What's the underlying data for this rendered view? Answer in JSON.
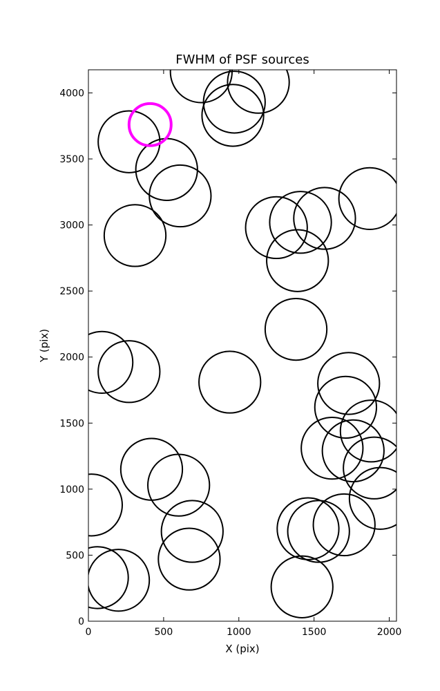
{
  "chart_data": {
    "type": "scatter",
    "title": "FWHM of PSF sources",
    "xlabel": "X (pix)",
    "ylabel": "Y (pix)",
    "xlim": [
      0,
      2048
    ],
    "ylim": [
      0,
      4175
    ],
    "xticks": [
      0,
      500,
      1000,
      1500,
      2000
    ],
    "yticks": [
      0,
      500,
      1000,
      1500,
      2000,
      2500,
      3000,
      3500,
      4000
    ],
    "grid": false,
    "marker": "circle",
    "colors": {
      "default": "#000000",
      "highlight": "#ff00ff"
    },
    "sources": [
      {
        "x": 750,
        "y": 4160,
        "fwhm_r": 205
      },
      {
        "x": 1130,
        "y": 4080,
        "fwhm_r": 205
      },
      {
        "x": 970,
        "y": 3930,
        "fwhm_r": 205
      },
      {
        "x": 960,
        "y": 3830,
        "fwhm_r": 205
      },
      {
        "x": 410,
        "y": 3760,
        "fwhm_r": 140,
        "highlight": true
      },
      {
        "x": 270,
        "y": 3630,
        "fwhm_r": 205
      },
      {
        "x": 520,
        "y": 3420,
        "fwhm_r": 205
      },
      {
        "x": 610,
        "y": 3220,
        "fwhm_r": 205
      },
      {
        "x": 310,
        "y": 2920,
        "fwhm_r": 205
      },
      {
        "x": 1250,
        "y": 2980,
        "fwhm_r": 205
      },
      {
        "x": 1410,
        "y": 3020,
        "fwhm_r": 205
      },
      {
        "x": 1570,
        "y": 3050,
        "fwhm_r": 205
      },
      {
        "x": 1870,
        "y": 3200,
        "fwhm_r": 205
      },
      {
        "x": 1390,
        "y": 2730,
        "fwhm_r": 205
      },
      {
        "x": 1380,
        "y": 2210,
        "fwhm_r": 205
      },
      {
        "x": 90,
        "y": 1960,
        "fwhm_r": 205
      },
      {
        "x": 270,
        "y": 1890,
        "fwhm_r": 205
      },
      {
        "x": 940,
        "y": 1810,
        "fwhm_r": 205
      },
      {
        "x": 1730,
        "y": 1800,
        "fwhm_r": 205
      },
      {
        "x": 1710,
        "y": 1620,
        "fwhm_r": 205
      },
      {
        "x": 1880,
        "y": 1440,
        "fwhm_r": 205
      },
      {
        "x": 1620,
        "y": 1310,
        "fwhm_r": 205
      },
      {
        "x": 1760,
        "y": 1290,
        "fwhm_r": 205
      },
      {
        "x": 1900,
        "y": 1160,
        "fwhm_r": 205
      },
      {
        "x": 1940,
        "y": 930,
        "fwhm_r": 205
      },
      {
        "x": 420,
        "y": 1150,
        "fwhm_r": 205
      },
      {
        "x": 600,
        "y": 1030,
        "fwhm_r": 205
      },
      {
        "x": 20,
        "y": 880,
        "fwhm_r": 205
      },
      {
        "x": 690,
        "y": 680,
        "fwhm_r": 205
      },
      {
        "x": 670,
        "y": 470,
        "fwhm_r": 205
      },
      {
        "x": 1460,
        "y": 700,
        "fwhm_r": 205
      },
      {
        "x": 1530,
        "y": 680,
        "fwhm_r": 205
      },
      {
        "x": 1700,
        "y": 730,
        "fwhm_r": 205
      },
      {
        "x": 60,
        "y": 330,
        "fwhm_r": 205
      },
      {
        "x": 200,
        "y": 310,
        "fwhm_r": 205
      },
      {
        "x": 1420,
        "y": 260,
        "fwhm_r": 205
      }
    ]
  }
}
